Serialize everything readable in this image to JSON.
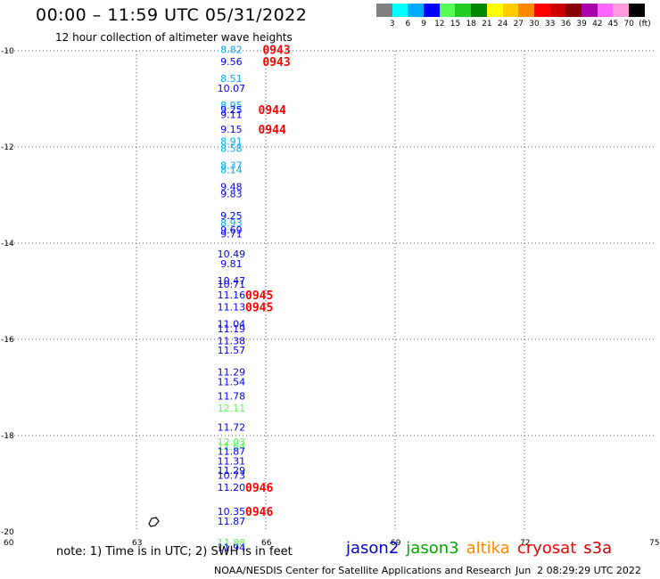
{
  "header": {
    "title": "00:00 – 11:59 UTC 05/31/2022",
    "subtitle": "12 hour collection of altimeter wave heights"
  },
  "colorbar": {
    "colors": [
      "#808080",
      "#00ffff",
      "#00aaff",
      "#0000ff",
      "#55ff55",
      "#22cc22",
      "#008800",
      "#ffff00",
      "#ffcc00",
      "#ff8800",
      "#ff0000",
      "#cc0000",
      "#880000",
      "#aa00aa",
      "#ff66ff",
      "#ff99dd",
      "#000000"
    ],
    "labels": [
      "3",
      "6",
      "9",
      "12",
      "15",
      "18",
      "21",
      "24",
      "27",
      "30",
      "33",
      "36",
      "39",
      "42",
      "45",
      "70",
      "(ft)"
    ]
  },
  "axes": {
    "lon_ticks": [
      "60",
      "63",
      "66",
      "69",
      "72",
      "75"
    ],
    "lat_ticks": [
      "-10",
      "-12",
      "-14",
      "-16",
      "-18",
      "-20"
    ]
  },
  "chart_data": {
    "type": "scatter",
    "lon_range": [
      60,
      75
    ],
    "lat_range": [
      -20,
      -10
    ],
    "wave_heights": [
      {
        "lat": -10.05,
        "lon": 65.2,
        "value": "8.82",
        "color": "#00aaff"
      },
      {
        "lat": -10.3,
        "lon": 65.2,
        "value": "9.56",
        "color": "#0000ff"
      },
      {
        "lat": -10.65,
        "lon": 65.2,
        "value": "8.51",
        "color": "#00aaff"
      },
      {
        "lat": -10.85,
        "lon": 65.2,
        "value": "10.07",
        "color": "#0000ff"
      },
      {
        "lat": -11.2,
        "lon": 65.2,
        "value": "8.95",
        "color": "#00aaff"
      },
      {
        "lat": -11.3,
        "lon": 65.2,
        "value": "9.25",
        "color": "#0000ff"
      },
      {
        "lat": -11.4,
        "lon": 65.2,
        "value": "9.11",
        "color": "#0000ff"
      },
      {
        "lat": -11.7,
        "lon": 65.2,
        "value": "9.15",
        "color": "#0000ff"
      },
      {
        "lat": -11.95,
        "lon": 65.2,
        "value": "8.91",
        "color": "#00aaff"
      },
      {
        "lat": -12.1,
        "lon": 65.2,
        "value": "8.58",
        "color": "#00aaff"
      },
      {
        "lat": -12.45,
        "lon": 65.2,
        "value": "8.37",
        "color": "#00aaff"
      },
      {
        "lat": -12.55,
        "lon": 65.2,
        "value": "8.14",
        "color": "#00aaff"
      },
      {
        "lat": -12.9,
        "lon": 65.2,
        "value": "9.48",
        "color": "#0000ff"
      },
      {
        "lat": -13.05,
        "lon": 65.2,
        "value": "9.83",
        "color": "#0000ff"
      },
      {
        "lat": -13.5,
        "lon": 65.2,
        "value": "9.25",
        "color": "#0000ff"
      },
      {
        "lat": -13.65,
        "lon": 65.2,
        "value": "8.93",
        "color": "#00aaff"
      },
      {
        "lat": -13.8,
        "lon": 65.2,
        "value": "9.69",
        "color": "#0000ff"
      },
      {
        "lat": -13.88,
        "lon": 65.2,
        "value": "9.71",
        "color": "#0000ff"
      },
      {
        "lat": -14.3,
        "lon": 65.2,
        "value": "10.49",
        "color": "#0000ff"
      },
      {
        "lat": -14.5,
        "lon": 65.2,
        "value": "9.81",
        "color": "#0000ff"
      },
      {
        "lat": -14.85,
        "lon": 65.2,
        "value": "10.47",
        "color": "#0000ff"
      },
      {
        "lat": -14.93,
        "lon": 65.2,
        "value": "10.71",
        "color": "#0000ff"
      },
      {
        "lat": -15.15,
        "lon": 65.2,
        "value": "11.16",
        "color": "#0000ff"
      },
      {
        "lat": -15.4,
        "lon": 65.2,
        "value": "11.13",
        "color": "#0000ff"
      },
      {
        "lat": -15.75,
        "lon": 65.2,
        "value": "11.04",
        "color": "#0000ff"
      },
      {
        "lat": -15.85,
        "lon": 65.2,
        "value": "11.19",
        "color": "#0000ff"
      },
      {
        "lat": -16.1,
        "lon": 65.2,
        "value": "11.38",
        "color": "#0000ff"
      },
      {
        "lat": -16.3,
        "lon": 65.2,
        "value": "11.57",
        "color": "#0000ff"
      },
      {
        "lat": -16.75,
        "lon": 65.2,
        "value": "11.29",
        "color": "#0000ff"
      },
      {
        "lat": -16.95,
        "lon": 65.2,
        "value": "11.54",
        "color": "#0000ff"
      },
      {
        "lat": -17.25,
        "lon": 65.2,
        "value": "11.78",
        "color": "#0000ff"
      },
      {
        "lat": -17.5,
        "lon": 65.2,
        "value": "12.11",
        "color": "#55ff55"
      },
      {
        "lat": -17.9,
        "lon": 65.2,
        "value": "11.72",
        "color": "#0000ff"
      },
      {
        "lat": -18.2,
        "lon": 65.2,
        "value": "12.03",
        "color": "#55ff55"
      },
      {
        "lat": -18.3,
        "lon": 65.2,
        "value": "11.64",
        "color": "#55ff55"
      },
      {
        "lat": -18.4,
        "lon": 65.2,
        "value": "11.87",
        "color": "#0000ff"
      },
      {
        "lat": -18.6,
        "lon": 65.2,
        "value": "11.31",
        "color": "#0000ff"
      },
      {
        "lat": -18.8,
        "lon": 65.2,
        "value": "11.29",
        "color": "#0000ff"
      },
      {
        "lat": -18.9,
        "lon": 65.2,
        "value": "10.73",
        "color": "#0000ff"
      },
      {
        "lat": -19.15,
        "lon": 65.2,
        "value": "11.20",
        "color": "#0000ff"
      },
      {
        "lat": -19.65,
        "lon": 65.2,
        "value": "10.35",
        "color": "#0000ff"
      },
      {
        "lat": -19.85,
        "lon": 65.2,
        "value": "11.87",
        "color": "#0000ff"
      },
      {
        "lat": -20.3,
        "lon": 65.2,
        "value": "11.88",
        "color": "#55ff55"
      },
      {
        "lat": -20.4,
        "lon": 65.2,
        "value": "11.94",
        "color": "#0000ff"
      }
    ],
    "time_labels": [
      {
        "lat": -10.05,
        "lon": 66.0,
        "value": "0943"
      },
      {
        "lat": -10.3,
        "lon": 66.0,
        "value": "0943"
      },
      {
        "lat": -11.3,
        "lon": 65.9,
        "value": "0944"
      },
      {
        "lat": -11.7,
        "lon": 65.9,
        "value": "0944"
      },
      {
        "lat": -15.15,
        "lon": 65.6,
        "value": "0945"
      },
      {
        "lat": -15.4,
        "lon": 65.6,
        "value": "0945"
      },
      {
        "lat": -19.15,
        "lon": 65.6,
        "value": "0946"
      },
      {
        "lat": -19.65,
        "lon": 65.6,
        "value": "0946"
      }
    ]
  },
  "footer": {
    "note": "note: 1) Time is in UTC; 2) SWH is in feet",
    "satellites": [
      {
        "name": "jason2",
        "color": "#0000cc"
      },
      {
        "name": "jason3",
        "color": "#00aa00"
      },
      {
        "name": "altika",
        "color": "#ff8800"
      },
      {
        "name": "cryosat",
        "color": "#ff0000"
      },
      {
        "name": "s3a",
        "color": "#cc0000"
      }
    ],
    "credit": "NOAA/NESDIS Center for Satellite Applications and Research",
    "timestamp": "Jun  2 08:29:29 UTC 2022"
  }
}
